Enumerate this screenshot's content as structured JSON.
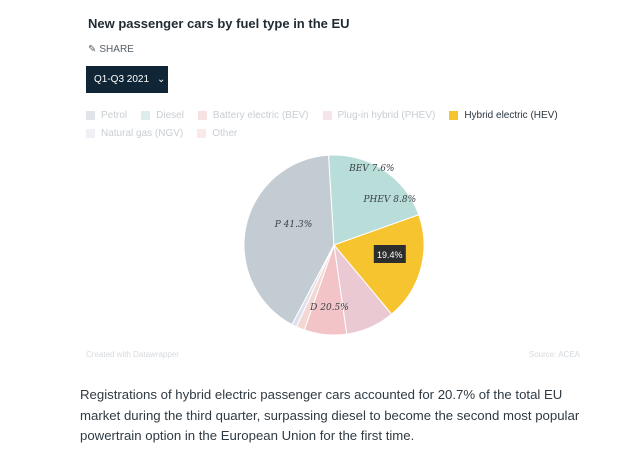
{
  "title": "New passenger cars by fuel type in the EU",
  "share_label": "SHARE",
  "period_selector": "Q1-Q3 2021",
  "legend": [
    {
      "label": "Petrol",
      "color": "#c3cbd3",
      "active": false
    },
    {
      "label": "Diesel",
      "color": "#b9ddd8",
      "active": false
    },
    {
      "label": "Battery electric (BEV)",
      "color": "#f2c4c8",
      "active": false
    },
    {
      "label": "Plug-in hybrid (PHEV)",
      "color": "#ebc9d2",
      "active": false
    },
    {
      "label": "Hybrid electric (HEV)",
      "color": "#f5c42f",
      "active": true
    },
    {
      "label": "Natural gas (NGV)",
      "color": "#dfe0ee",
      "active": false
    },
    {
      "label": "Other",
      "color": "#f4d6d3",
      "active": false
    }
  ],
  "chart_data": {
    "type": "pie",
    "slices": [
      {
        "name": "Petrol",
        "label": "P 41.3%",
        "value": 41.3,
        "color": "#c3cbd3"
      },
      {
        "name": "Diesel",
        "label": "D 20.5%",
        "value": 20.5,
        "color": "#b9ddd8"
      },
      {
        "name": "Hybrid electric (HEV)",
        "label": "19.4%",
        "value": 19.4,
        "color": "#f5c42f"
      },
      {
        "name": "Plug-in hybrid (PHEV)",
        "label": "PHEV 8.8%",
        "value": 8.8,
        "color": "#ebc9d2"
      },
      {
        "name": "Battery electric (BEV)",
        "label": "BEV 7.6%",
        "value": 7.6,
        "color": "#f2c4c8"
      },
      {
        "name": "Other",
        "label": "",
        "value": 1.5,
        "color": "#f4d6d3"
      },
      {
        "name": "Natural gas (NGV)",
        "label": "",
        "value": 0.9,
        "color": "#dfe0ee"
      }
    ]
  },
  "credit": "Created with Datawrapper",
  "source": "Source: ACEA",
  "article_text": "Registrations of hybrid electric passenger cars accounted for 20.7% of the total EU market during the third quarter, surpassing diesel to become the second most popular powertrain option in the European Union for the first time."
}
